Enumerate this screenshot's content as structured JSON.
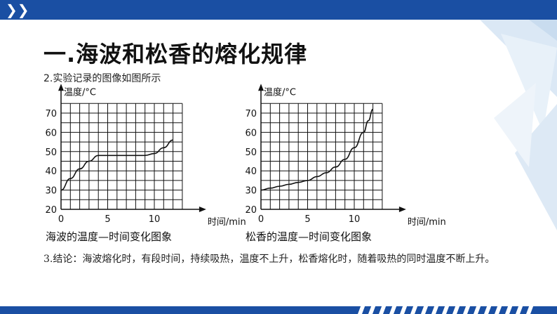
{
  "header": {
    "chevrons": "❯❯"
  },
  "title": "一.海波和松香的熔化规律",
  "subtitle": "2.实验记录的图像如图所示",
  "conclusion": "3.结论：海波熔化时，有段时间，持续吸热，温度不上升，松香熔化时，随着吸热的同时温度不断上升。",
  "colors": {
    "accent": "#1a4fa3",
    "grid": "#111111"
  },
  "chart_data": [
    {
      "type": "line",
      "title": "海波的温度—时间变化图象",
      "xlabel": "时间/min",
      "ylabel": "温度/°C",
      "xlim": [
        0,
        13
      ],
      "ylim": [
        20,
        75
      ],
      "x_ticks": [
        "0",
        "5",
        "10"
      ],
      "y_ticks": [
        "20",
        "30",
        "40",
        "50",
        "60",
        "70"
      ],
      "grid": true,
      "series": [
        {
          "x": [
            0,
            1,
            2,
            3,
            4,
            5,
            6,
            7,
            8,
            9,
            10,
            11,
            12
          ],
          "y": [
            30,
            36,
            41,
            45,
            48,
            48,
            48,
            48,
            48,
            48,
            49,
            52,
            56
          ]
        }
      ]
    },
    {
      "type": "line",
      "title": "松香的温度—时间变化图象",
      "xlabel": "时间/min",
      "ylabel": "温度/°C",
      "xlim": [
        0,
        13
      ],
      "ylim": [
        20,
        75
      ],
      "x_ticks": [
        "0",
        "5",
        "10"
      ],
      "y_ticks": [
        "20",
        "30",
        "40",
        "50",
        "60",
        "70"
      ],
      "grid": true,
      "series": [
        {
          "x": [
            0,
            1,
            2,
            3,
            4,
            5,
            6,
            7,
            8,
            9,
            10,
            11,
            11.5,
            12
          ],
          "y": [
            30,
            31,
            32,
            33,
            34,
            35,
            37,
            39,
            42,
            46,
            52,
            60,
            66,
            72
          ]
        }
      ]
    }
  ]
}
